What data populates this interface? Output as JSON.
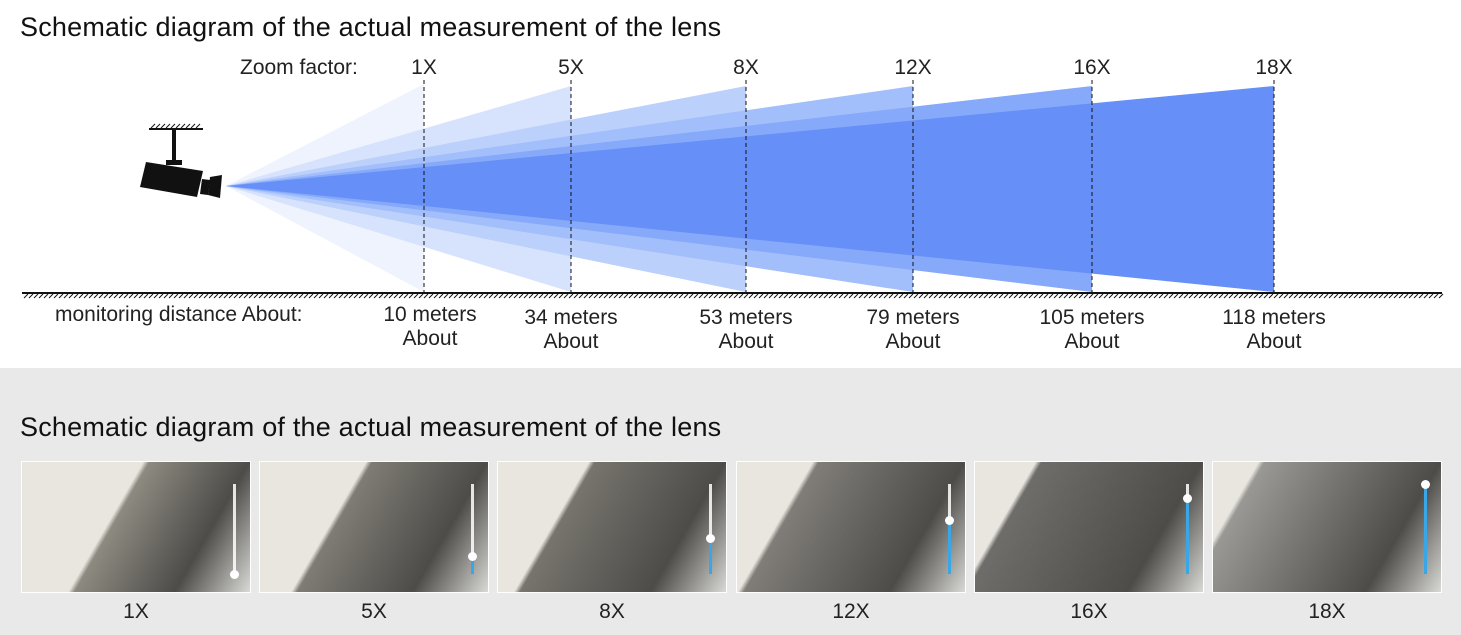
{
  "top": {
    "title": "Schematic diagram of the actual measurement of the lens",
    "zoom_label": "Zoom factor:",
    "distance_label": "monitoring distance About:",
    "levels": [
      {
        "zoom": "1X",
        "distance": "10 meters",
        "about": "About",
        "color": "#eef3fe"
      },
      {
        "zoom": "5X",
        "distance": "34 meters",
        "about": "About",
        "color": "#d7e3fd"
      },
      {
        "zoom": "8X",
        "distance": "53 meters",
        "about": "About",
        "color": "#bcd0fc"
      },
      {
        "zoom": "12X",
        "distance": "79 meters",
        "about": "About",
        "color": "#a2befb"
      },
      {
        "zoom": "16X",
        "distance": "105 meters",
        "about": "About",
        "color": "#86a9fa"
      },
      {
        "zoom": "18X",
        "distance": "118 meters",
        "about": "About",
        "color": "#6690f8"
      }
    ]
  },
  "bottom": {
    "title": "Schematic diagram of the actual measurement of the lens",
    "photos": [
      {
        "caption": "1X",
        "zoom_level": 0.0,
        "tone": "#8d8a80"
      },
      {
        "caption": "5X",
        "zoom_level": 0.2,
        "tone": "#7f7c74"
      },
      {
        "caption": "8X",
        "zoom_level": 0.4,
        "tone": "#77746d"
      },
      {
        "caption": "12X",
        "zoom_level": 0.6,
        "tone": "#807d78"
      },
      {
        "caption": "16X",
        "zoom_level": 0.85,
        "tone": "#6e6d6a"
      },
      {
        "caption": "18X",
        "zoom_level": 1.0,
        "tone": "#9a9894"
      }
    ]
  }
}
